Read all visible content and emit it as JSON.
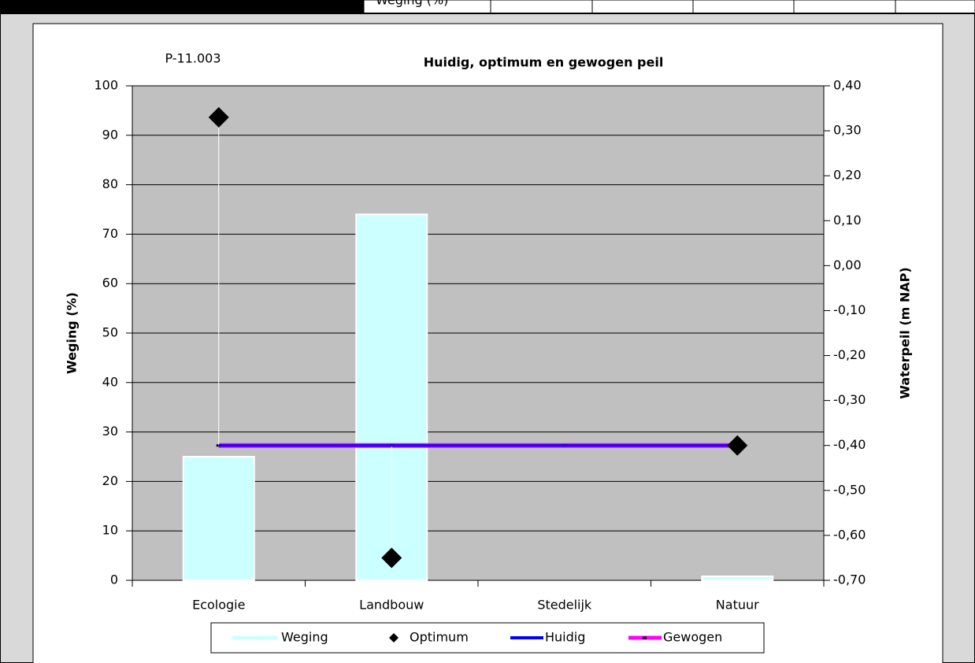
{
  "header": {
    "cell": "Weging (%)"
  },
  "chart_data": {
    "type": "bar",
    "title": "Huidig, optimum en gewogen peil",
    "label": "P-11.003",
    "ylabel": "Weging (%)",
    "y2label": "Waterpeil (m NAP)",
    "categories": [
      "Ecologie",
      "Landbouw",
      "Stedelijk",
      "Natuur"
    ],
    "series": [
      {
        "name": "Weging",
        "type": "bar",
        "color": "#ccffff",
        "values": [
          25,
          74,
          0,
          0.8
        ]
      },
      {
        "name": "Optimum",
        "type": "scatter",
        "axis": "y2",
        "color": "#000000",
        "values": [
          0.33,
          -0.65,
          null,
          -0.4
        ]
      },
      {
        "name": "Huidig",
        "type": "line",
        "axis": "y2",
        "color": "#0000ff",
        "values": [
          -0.4,
          -0.4,
          -0.4,
          -0.4
        ]
      },
      {
        "name": "Gewogen",
        "type": "line",
        "axis": "y2",
        "color": "#ff00ff",
        "values": [
          -0.4,
          -0.4,
          -0.4,
          -0.4
        ]
      }
    ],
    "ylim": [
      0,
      100
    ],
    "yticks": [
      0,
      10,
      20,
      30,
      40,
      50,
      60,
      70,
      80,
      90,
      100
    ],
    "y2lim": [
      -0.7,
      0.4
    ],
    "y2ticks": [
      {
        "value": -0.7,
        "label": "-0,70"
      },
      {
        "value": -0.6,
        "label": "-0,60"
      },
      {
        "value": -0.5,
        "label": "-0,50"
      },
      {
        "value": -0.4,
        "label": "-0,40"
      },
      {
        "value": -0.3,
        "label": "-0,30"
      },
      {
        "value": -0.2,
        "label": "-0,20"
      },
      {
        "value": -0.1,
        "label": "-0,10"
      },
      {
        "value": 0,
        "label": "0,00"
      },
      {
        "value": 0.1,
        "label": "0,10"
      },
      {
        "value": 0.2,
        "label": "0,20"
      },
      {
        "value": 0.3,
        "label": "0,30"
      },
      {
        "value": 0.4,
        "label": "0,40"
      }
    ],
    "grid": true,
    "legend": "bottom"
  }
}
